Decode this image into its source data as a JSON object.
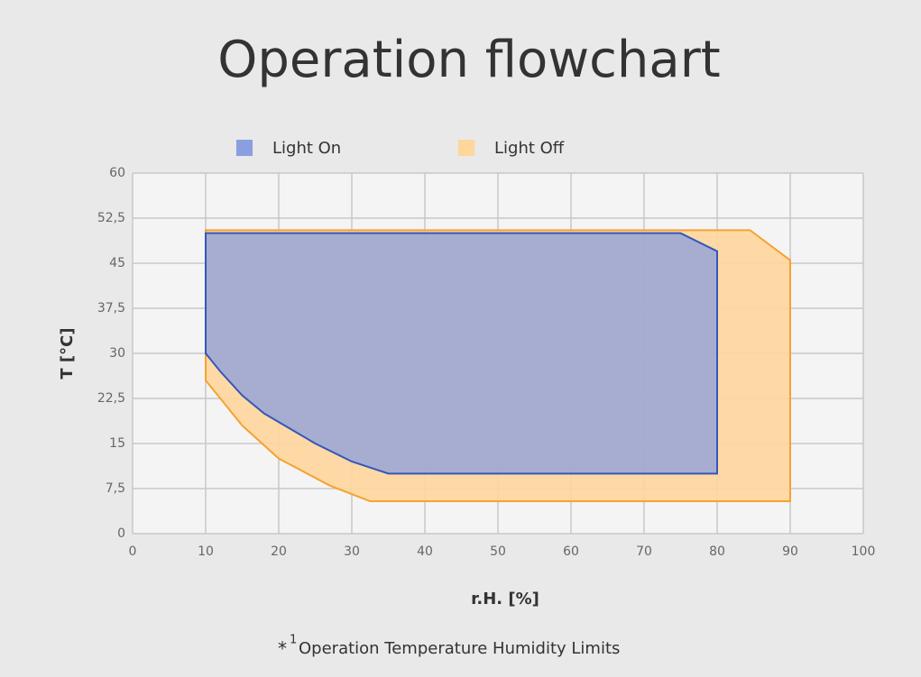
{
  "chart_data": {
    "type": "area",
    "title": "Operation flowchart",
    "x_label": "r.H. [%]",
    "y_label": "T [°C]",
    "footnote": {
      "marker": "*",
      "sup": "1",
      "text": "Operation  Temperature  Humidity  Limits"
    },
    "xlim": [
      0,
      100
    ],
    "xticks": [
      0,
      10,
      20,
      30,
      40,
      50,
      60,
      70,
      80,
      90,
      100
    ],
    "ylim": [
      0,
      60
    ],
    "yticks": [
      0,
      {
        "value": 7.5,
        "label": "7,5"
      },
      15,
      {
        "value": 22.5,
        "label": "22,5"
      },
      30,
      {
        "value": 37.5,
        "label": "37,5"
      },
      45,
      {
        "value": 52.5,
        "label": "52,5"
      },
      60
    ],
    "grid": true,
    "series": [
      {
        "name": "Light Off",
        "color": "#ffd69c",
        "stroke": "#f5a233",
        "x": [
          10,
          84.5,
          90,
          90,
          32.5,
          27,
          20,
          15,
          10
        ],
        "values": [
          50.5,
          50.5,
          45.5,
          5.4,
          5.4,
          8,
          12.5,
          18,
          25.5
        ]
      },
      {
        "name": "Light On",
        "color": "#8a9ee0",
        "stroke": "#3558b8",
        "x": [
          10,
          75,
          80,
          80,
          35,
          30,
          25,
          18,
          15,
          12,
          10
        ],
        "values": [
          50,
          50,
          47,
          10,
          10,
          12,
          15,
          20,
          23,
          27,
          30
        ]
      }
    ]
  }
}
